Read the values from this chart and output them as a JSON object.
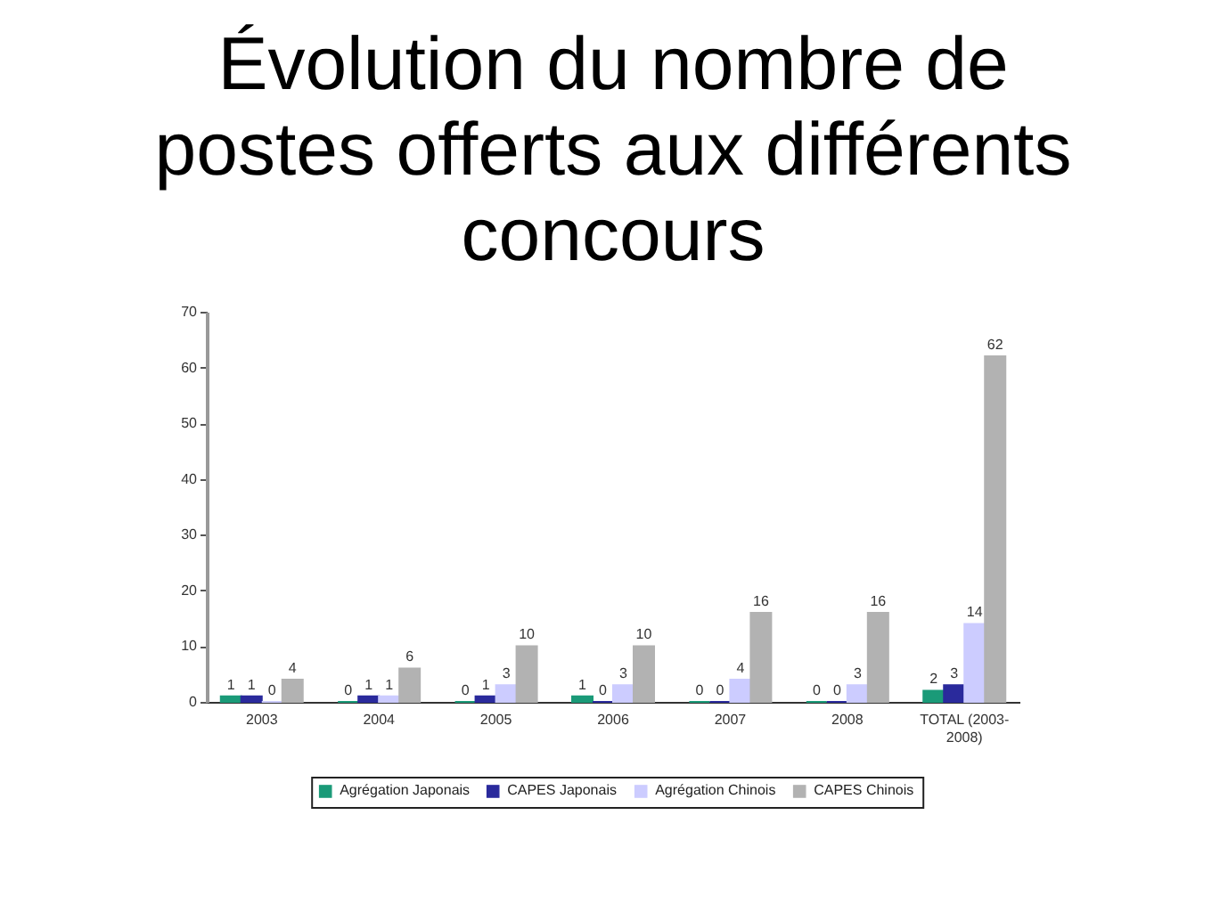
{
  "chart_data": {
    "type": "bar",
    "title": "Évolution du nombre de postes offerts aux différents concours",
    "categories": [
      "2003",
      "2004",
      "2005",
      "2006",
      "2007",
      "2008",
      "TOTAL (2003-2008)"
    ],
    "series": [
      {
        "name": "Agrégation Japonais",
        "color": "#1a9a78",
        "values": [
          1,
          0,
          0,
          1,
          0,
          0,
          2
        ]
      },
      {
        "name": "CAPES Japonais",
        "color": "#2a2a9c",
        "values": [
          1,
          1,
          1,
          0,
          0,
          0,
          3
        ]
      },
      {
        "name": "Agrégation Chinois",
        "color": "#ccccff",
        "values": [
          0,
          1,
          3,
          3,
          4,
          3,
          14
        ]
      },
      {
        "name": "CAPES Chinois",
        "color": "#b2b2b2",
        "values": [
          4,
          6,
          10,
          10,
          16,
          16,
          62
        ]
      }
    ],
    "ylim": [
      0,
      70
    ],
    "yticks": [
      0,
      10,
      20,
      30,
      40,
      50,
      60,
      70
    ],
    "grid": false,
    "legend": "bottom",
    "data_labels": true
  }
}
